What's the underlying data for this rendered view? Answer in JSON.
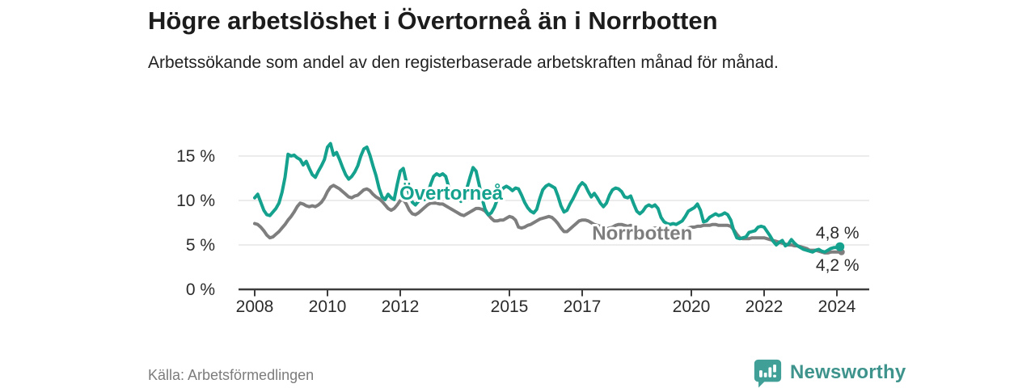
{
  "header": {
    "title": "Högre arbetslöshet i Övertorneå än i Norrbotten",
    "subtitle": "Arbetssökande som andel av den registerbaserade arbetskraften månad för månad."
  },
  "footer": {
    "source": "Källa: Arbetsförmedlingen",
    "brand_name": "Newsworthy",
    "brand_color": "#3e948c",
    "brand_icon": "bar-chart-speech-bubble-icon",
    "brand_icon_color": "#40a098"
  },
  "colors": {
    "accent_teal": "#14a28e",
    "neutral_gray": "#7e7e7e",
    "gridline": "#d9d9d9",
    "axis": "#3d3d3d",
    "tick_label": "#2b2b2b",
    "end_label": "#2b2b2b"
  },
  "chart_data": {
    "type": "line",
    "title": "Högre arbetslöshet i Övertorneå än i Norrbotten",
    "xlabel": "",
    "ylabel": "",
    "unit": "%",
    "grid": "horizontal",
    "legend_position": "inline-labels",
    "x_start_year": 2008,
    "x_step_months": 1,
    "xlim": [
      2007.55,
      2024.9
    ],
    "ylim": [
      0,
      17
    ],
    "x_ticks": [
      {
        "v": 2008,
        "label": "2008"
      },
      {
        "v": 2010,
        "label": "2010"
      },
      {
        "v": 2012,
        "label": "2012"
      },
      {
        "v": 2015,
        "label": "2015"
      },
      {
        "v": 2017,
        "label": "2017"
      },
      {
        "v": 2020,
        "label": "2020"
      },
      {
        "v": 2022,
        "label": "2022"
      },
      {
        "v": 2024,
        "label": "2024"
      }
    ],
    "y_ticks": [
      {
        "v": 0,
        "label": "0 %"
      },
      {
        "v": 5,
        "label": "5 %"
      },
      {
        "v": 10,
        "label": "10 %"
      },
      {
        "v": 15,
        "label": "15 %"
      }
    ],
    "series": [
      {
        "name": "Övertorneå",
        "color": "#14a28e",
        "label_pos": {
          "x": 2013.4,
          "y": 10.8
        },
        "end_label": "4,8 %",
        "end_label_position": "above",
        "end_dot": true,
        "values": [
          10.3,
          10.7,
          9.8,
          8.9,
          8.4,
          8.3,
          8.7,
          9.1,
          9.7,
          10.9,
          12.6,
          15.2,
          15.0,
          15.1,
          14.8,
          14.6,
          14.0,
          14.4,
          13.6,
          12.9,
          12.6,
          13.3,
          13.9,
          14.6,
          16.0,
          16.4,
          15.1,
          15.4,
          14.6,
          13.7,
          12.9,
          12.4,
          12.7,
          13.2,
          13.9,
          15.0,
          15.8,
          16.0,
          15.1,
          13.9,
          12.8,
          11.4,
          10.4,
          10.1,
          10.7,
          10.3,
          10.1,
          11.8,
          13.3,
          13.6,
          12.1,
          10.6,
          9.8,
          9.5,
          9.9,
          10.3,
          10.1,
          10.7,
          11.8,
          12.7,
          13.0,
          12.8,
          13.0,
          12.7,
          11.5,
          10.5,
          10.1,
          10.3,
          9.9,
          10.5,
          11.4,
          12.6,
          13.7,
          13.3,
          11.8,
          10.2,
          9.0,
          8.4,
          8.6,
          9.2,
          10.1,
          10.9,
          11.4,
          11.6,
          11.4,
          11.1,
          11.4,
          11.3,
          10.6,
          9.8,
          9.2,
          8.8,
          8.6,
          9.0,
          10.2,
          11.2,
          11.6,
          11.8,
          11.6,
          11.4,
          10.5,
          9.4,
          8.7,
          8.9,
          9.6,
          10.2,
          10.9,
          11.6,
          12.0,
          11.7,
          11.0,
          10.4,
          10.8,
          10.3,
          9.7,
          9.3,
          9.7,
          10.6,
          11.2,
          11.4,
          11.3,
          11.0,
          10.4,
          10.3,
          10.5,
          9.6,
          8.8,
          8.5,
          8.8,
          9.3,
          9.5,
          9.3,
          9.5,
          9.1,
          8.1,
          7.6,
          7.4,
          7.3,
          7.4,
          7.3,
          7.5,
          7.7,
          8.2,
          8.8,
          9.0,
          9.2,
          9.6,
          8.9,
          7.6,
          7.7,
          8.1,
          8.3,
          8.5,
          8.3,
          8.4,
          8.6,
          8.4,
          7.8,
          6.6,
          5.8,
          5.7,
          5.8,
          5.9,
          6.4,
          6.5,
          6.6,
          7.0,
          7.1,
          7.0,
          6.5,
          6.0,
          5.4,
          5.0,
          5.3,
          5.5,
          4.9,
          5.1,
          5.6,
          5.2,
          4.9,
          4.7,
          4.5,
          4.4,
          4.3,
          4.2,
          4.4,
          4.5,
          4.3,
          4.2,
          4.4,
          4.6,
          4.7,
          4.7,
          4.8
        ]
      },
      {
        "name": "Norrbotten",
        "color": "#7e7e7e",
        "label_pos": {
          "x": 2018.65,
          "y": 6.3
        },
        "end_label": "4,2 %",
        "end_label_position": "below",
        "end_dot": true,
        "values": [
          7.4,
          7.3,
          7.0,
          6.6,
          6.1,
          5.8,
          5.9,
          6.2,
          6.5,
          6.9,
          7.3,
          7.8,
          8.2,
          8.7,
          9.3,
          9.7,
          9.6,
          9.4,
          9.3,
          9.4,
          9.3,
          9.5,
          9.8,
          10.3,
          11.0,
          11.5,
          11.7,
          11.5,
          11.3,
          11.0,
          10.7,
          10.4,
          10.3,
          10.5,
          10.6,
          10.9,
          11.2,
          11.3,
          11.1,
          10.7,
          10.4,
          10.2,
          9.9,
          9.5,
          9.1,
          8.9,
          9.1,
          9.5,
          10.0,
          10.1,
          9.6,
          8.9,
          8.5,
          8.4,
          8.6,
          8.9,
          9.2,
          9.5,
          9.7,
          9.7,
          9.7,
          9.6,
          9.6,
          9.4,
          9.2,
          9.0,
          8.8,
          8.6,
          8.4,
          8.3,
          8.5,
          8.7,
          8.9,
          9.1,
          9.1,
          9.0,
          8.8,
          8.4,
          8.0,
          7.7,
          7.7,
          7.8,
          7.8,
          8.0,
          8.2,
          8.1,
          7.8,
          7.0,
          6.9,
          7.0,
          7.2,
          7.3,
          7.5,
          7.7,
          7.9,
          8.0,
          8.1,
          8.2,
          8.1,
          7.8,
          7.4,
          6.9,
          6.5,
          6.5,
          6.8,
          7.1,
          7.4,
          7.7,
          7.8,
          7.8,
          7.7,
          7.5,
          7.3,
          7.2,
          7.1,
          6.9,
          6.8,
          6.9,
          7.0,
          7.2,
          7.3,
          7.3,
          7.2,
          7.1,
          7.2,
          7.0,
          6.8,
          6.6,
          6.5,
          6.6,
          6.7,
          6.8,
          6.9,
          6.9,
          6.8,
          6.7,
          6.6,
          6.5,
          6.4,
          6.4,
          6.5,
          6.6,
          6.7,
          6.9,
          7.0,
          7.0,
          7.1,
          7.1,
          7.2,
          7.2,
          7.2,
          7.3,
          7.3,
          7.2,
          7.2,
          7.2,
          7.2,
          7.1,
          6.7,
          6.2,
          5.8,
          5.7,
          5.7,
          5.7,
          5.8,
          5.8,
          5.8,
          5.8,
          5.8,
          5.7,
          5.6,
          5.5,
          5.4,
          5.3,
          5.2,
          5.1,
          5.0,
          5.0,
          4.9,
          4.9,
          4.8,
          4.7,
          4.6,
          4.4,
          4.4,
          4.4,
          4.3,
          4.2,
          4.1,
          4.1,
          4.2,
          4.2,
          4.2,
          4.2
        ]
      }
    ]
  }
}
